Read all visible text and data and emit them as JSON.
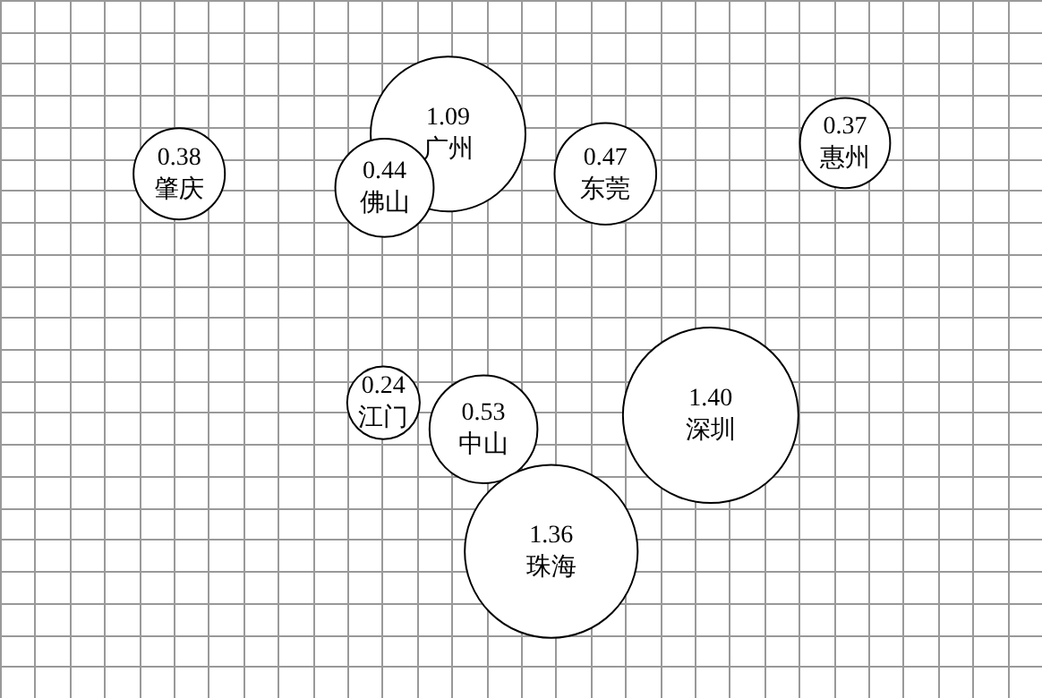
{
  "chart_data": {
    "type": "other",
    "value_labels": [
      "0.38",
      "1.09",
      "0.44",
      "0.47",
      "0.37",
      "0.24",
      "0.53",
      "1.40",
      "1.36"
    ],
    "categories": [
      "肇庆",
      "广州",
      "佛山",
      "东莞",
      "惠州",
      "江门",
      "中山",
      "深圳",
      "珠海"
    ],
    "values": [
      0.38,
      1.09,
      0.44,
      0.47,
      0.37,
      0.24,
      0.53,
      1.4,
      1.36
    ]
  }
}
